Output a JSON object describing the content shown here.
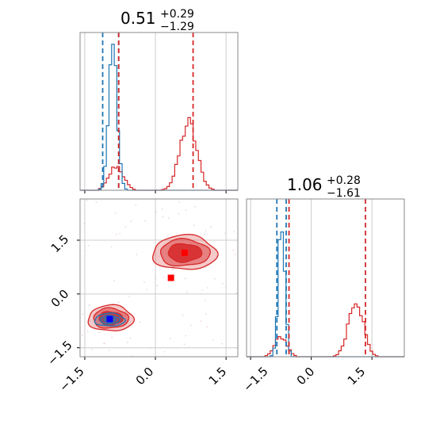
{
  "chart_data": {
    "type": "corner",
    "colors": {
      "blue": "#1f77b4",
      "red": "#d62728",
      "grid": "#cccccc",
      "axis": "#888888",
      "marker_red": "#ff0000",
      "marker_blue": "#0000ff"
    },
    "titles": {
      "param1": {
        "value": "0.51",
        "plus": "+0.29",
        "minus": "−1.29"
      },
      "param2": {
        "value": "1.06",
        "plus": "+0.28",
        "minus": "−1.61"
      }
    },
    "axes": {
      "x1_range": [
        -1.6,
        1.75
      ],
      "x2_range": [
        -1.6,
        2.3
      ],
      "y_range": [
        -1.75,
        2.65
      ],
      "x1_ticks": [
        "−1.5",
        "0.0",
        "1.5"
      ],
      "x1_tick_values": [
        -1.5,
        0.0,
        1.5
      ],
      "x2_ticks": [
        "−1.5",
        "0.0",
        "1.5"
      ],
      "x2_tick_values": [
        -1.5,
        0.0,
        1.5
      ],
      "y_ticks": [
        "1.5",
        "0.0",
        "−1.5"
      ],
      "y_tick_values": [
        1.5,
        0.0,
        -1.5
      ],
      "grid": true
    },
    "hist1": {
      "blue_quantiles": [
        -1.12,
        -0.78
      ],
      "red_quantiles": [
        -0.78,
        0.8
      ],
      "blue_components": [
        {
          "mu": -0.9,
          "sigma": 0.09,
          "amp": 1.0
        }
      ],
      "red_components": [
        {
          "mu": -0.83,
          "sigma": 0.15,
          "amp": 0.17
        },
        {
          "mu": 0.7,
          "sigma": 0.18,
          "amp": 0.47
        }
      ]
    },
    "hist2": {
      "blue_quantiles": [
        -0.85,
        -0.62
      ],
      "red_quantiles": [
        -0.55,
        1.34
      ],
      "blue_components": [
        {
          "mu": -0.73,
          "sigma": 0.08,
          "amp": 1.0
        }
      ],
      "red_components": [
        {
          "mu": -0.75,
          "sigma": 0.15,
          "amp": 0.14
        },
        {
          "mu": 1.1,
          "sigma": 0.18,
          "amp": 0.41
        }
      ]
    },
    "scatter2d": {
      "red_clusters": [
        {
          "cx": 0.62,
          "cy": 1.15,
          "sx": 0.34,
          "sy": 0.24
        },
        {
          "cx": -0.95,
          "cy": -0.68,
          "sx": 0.24,
          "sy": 0.18
        }
      ],
      "blue_cluster": {
        "cx": -0.97,
        "cy": -0.72,
        "sx": 0.16,
        "sy": 0.09
      },
      "markers": [
        {
          "x": 0.62,
          "y": 1.15,
          "color": "red"
        },
        {
          "x": 0.33,
          "y": 0.45,
          "color": "red"
        },
        {
          "x": -0.97,
          "y": -0.7,
          "color": "blue"
        }
      ]
    }
  }
}
